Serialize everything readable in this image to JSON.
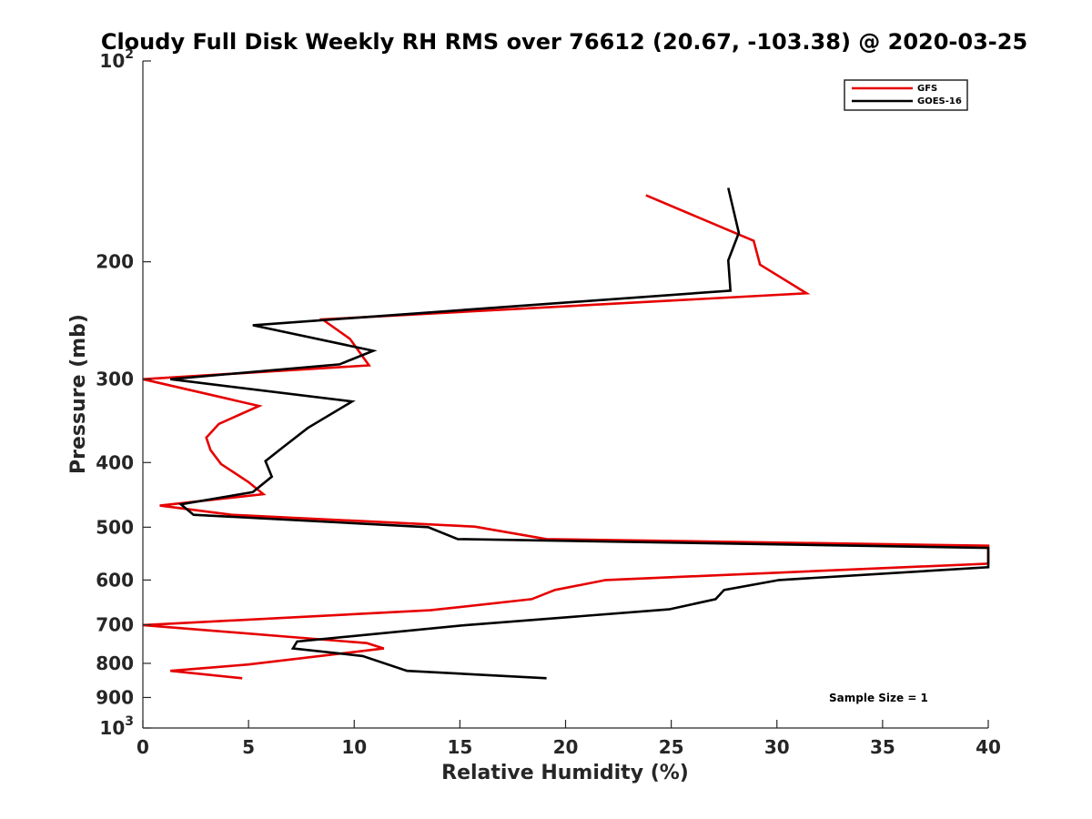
{
  "chart_data": {
    "type": "line",
    "title": "Cloudy Full Disk Weekly RH RMS over 76612 (20.67, -103.38) @ 2020-03-25",
    "xlabel": "Relative Humidity (%)",
    "ylabel": "Pressure (mb)",
    "xlim": [
      0,
      40
    ],
    "ylim": [
      100,
      1000
    ],
    "yscale": "log",
    "yreversed": true,
    "x_ticks": [
      0,
      5,
      10,
      15,
      20,
      25,
      30,
      35,
      40
    ],
    "x_tick_labels": [
      "0",
      "5",
      "10",
      "15",
      "20",
      "25",
      "30",
      "35",
      "40"
    ],
    "y_ticks": [
      {
        "value": 100,
        "base": "10",
        "exp": "2"
      },
      {
        "value": 200,
        "label": "200"
      },
      {
        "value": 300,
        "label": "300"
      },
      {
        "value": 400,
        "label": "400"
      },
      {
        "value": 500,
        "label": "500"
      },
      {
        "value": 600,
        "label": "600"
      },
      {
        "value": 700,
        "label": "700"
      },
      {
        "value": 800,
        "label": "800"
      },
      {
        "value": 900,
        "label": "900"
      },
      {
        "value": 1000,
        "base": "10",
        "exp": "3"
      }
    ],
    "legend_position": "top-right",
    "annotation": "Sample Size = 1",
    "series": [
      {
        "name": "GFS",
        "color": "#e60000",
        "points": [
          [
            23.8,
            159
          ],
          [
            28.9,
            186
          ],
          [
            29.2,
            202
          ],
          [
            31.4,
            223
          ],
          [
            8.5,
            244
          ],
          [
            9.8,
            261
          ],
          [
            10.7,
            286
          ],
          [
            0.0,
            300
          ],
          [
            5.5,
            329
          ],
          [
            3.6,
            350
          ],
          [
            3.0,
            367
          ],
          [
            3.2,
            383
          ],
          [
            3.7,
            402
          ],
          [
            5.0,
            428
          ],
          [
            5.7,
            446
          ],
          [
            0.8,
            464
          ],
          [
            4.2,
            479
          ],
          [
            15.7,
            499
          ],
          [
            19.1,
            521
          ],
          [
            40.0,
            533
          ],
          [
            40.0,
            567
          ],
          [
            21.9,
            600
          ],
          [
            19.5,
            621
          ],
          [
            18.4,
            641
          ],
          [
            13.6,
            666
          ],
          [
            0.0,
            701
          ],
          [
            10.6,
            746
          ],
          [
            11.4,
            760
          ],
          [
            5.0,
            803
          ],
          [
            1.3,
            821
          ],
          [
            4.7,
            842
          ]
        ]
      },
      {
        "name": "GOES-16",
        "color": "#000000",
        "points": [
          [
            27.7,
            155
          ],
          [
            28.2,
            181
          ],
          [
            27.7,
            199
          ],
          [
            27.8,
            221
          ],
          [
            5.2,
            249
          ],
          [
            10.9,
            272
          ],
          [
            9.3,
            285
          ],
          [
            1.3,
            300
          ],
          [
            9.9,
            324
          ],
          [
            7.8,
            355
          ],
          [
            6.6,
            380
          ],
          [
            5.8,
            398
          ],
          [
            6.1,
            420
          ],
          [
            5.2,
            443
          ],
          [
            1.8,
            462
          ],
          [
            2.4,
            479
          ],
          [
            13.5,
            500
          ],
          [
            14.9,
            521
          ],
          [
            40.0,
            537
          ],
          [
            40.0,
            574
          ],
          [
            30.1,
            600
          ],
          [
            27.5,
            621
          ],
          [
            27.1,
            641
          ],
          [
            24.9,
            664
          ],
          [
            15.3,
            701
          ],
          [
            7.3,
            742
          ],
          [
            7.1,
            760
          ],
          [
            10.4,
            780
          ],
          [
            12.5,
            821
          ],
          [
            19.1,
            842
          ]
        ]
      }
    ]
  }
}
